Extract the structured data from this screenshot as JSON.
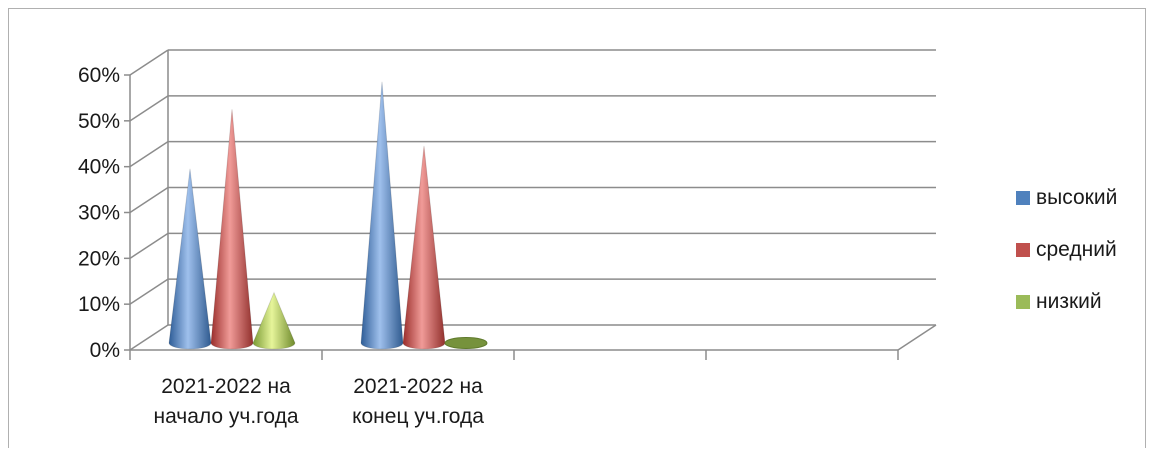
{
  "chart_data": {
    "type": "bar",
    "bar_shape": "cone",
    "three_d": true,
    "categories": [
      [
        "2021-2022 на",
        "начало уч.года"
      ],
      [
        "2021-2022 на",
        "конец уч.года"
      ],
      [
        "",
        ""
      ],
      [
        "",
        ""
      ]
    ],
    "series": [
      {
        "name": "высокий",
        "color": "#4f81bd",
        "values": [
          0.38,
          0.57,
          null,
          null
        ]
      },
      {
        "name": "средний",
        "color": "#c0504d",
        "values": [
          0.51,
          0.43,
          null,
          null
        ]
      },
      {
        "name": "низкий",
        "color": "#9bbb59",
        "values": [
          0.11,
          0.0,
          null,
          null
        ]
      }
    ],
    "y_ticks": [
      "0%",
      "10%",
      "20%",
      "30%",
      "40%",
      "50%",
      "60%"
    ],
    "ylim": [
      0,
      0.6
    ],
    "grid": true,
    "legend_position": "right"
  }
}
